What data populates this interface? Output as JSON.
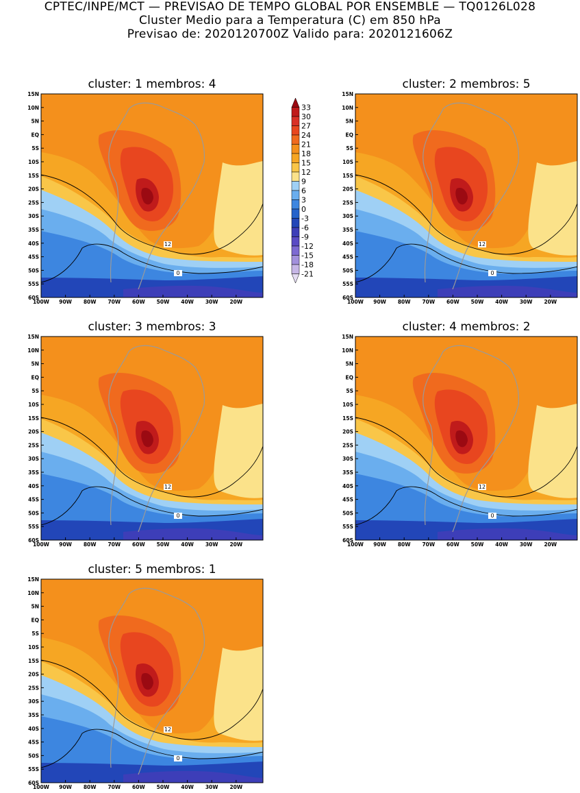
{
  "header": {
    "line1": "CPTEC/INPE/MCT — PREVISAO DE TEMPO GLOBAL POR ENSEMBLE — TQ0126L028",
    "line2": "Cluster Medio para a Temperatura (C) em 850 hPa",
    "line3": "Previsao de: 2020120700Z   Valido para: 2020121606Z"
  },
  "panels": [
    {
      "title": "cluster: 1  membros: 4"
    },
    {
      "title": "cluster: 2  membros: 5"
    },
    {
      "title": "cluster: 3  membros: 3"
    },
    {
      "title": "cluster: 4  membros: 2"
    },
    {
      "title": "cluster: 5  membros: 1"
    }
  ],
  "axes": {
    "lat_labels": [
      "15N",
      "10N",
      "5N",
      "EQ",
      "5S",
      "10S",
      "15S",
      "20S",
      "25S",
      "30S",
      "35S",
      "40S",
      "45S",
      "50S",
      "55S",
      "60S"
    ],
    "lon_labels": [
      "100W",
      "90W",
      "80W",
      "70W",
      "60W",
      "50W",
      "40W",
      "30W",
      "20W"
    ]
  },
  "contour_labels": {
    "c12": "12",
    "c0": "0"
  },
  "colorbar": {
    "levels": [
      "33",
      "30",
      "27",
      "24",
      "21",
      "18",
      "15",
      "12",
      "9",
      "6",
      "3",
      "0",
      "-3",
      "-6",
      "-9",
      "-12",
      "-15",
      "-18",
      "-21"
    ],
    "colors": [
      "#9b0a12",
      "#c01b1b",
      "#d93026",
      "#e8461f",
      "#f06a1e",
      "#f4901c",
      "#f6a623",
      "#f9c648",
      "#fbe28a",
      "#9fd0f5",
      "#6aaeee",
      "#3d86e0",
      "#2563cc",
      "#2246b8",
      "#3d3eb8",
      "#5a4bc4",
      "#7d6ad2",
      "#a290dc",
      "#c6b6e6",
      "#e4dcf2"
    ]
  }
}
